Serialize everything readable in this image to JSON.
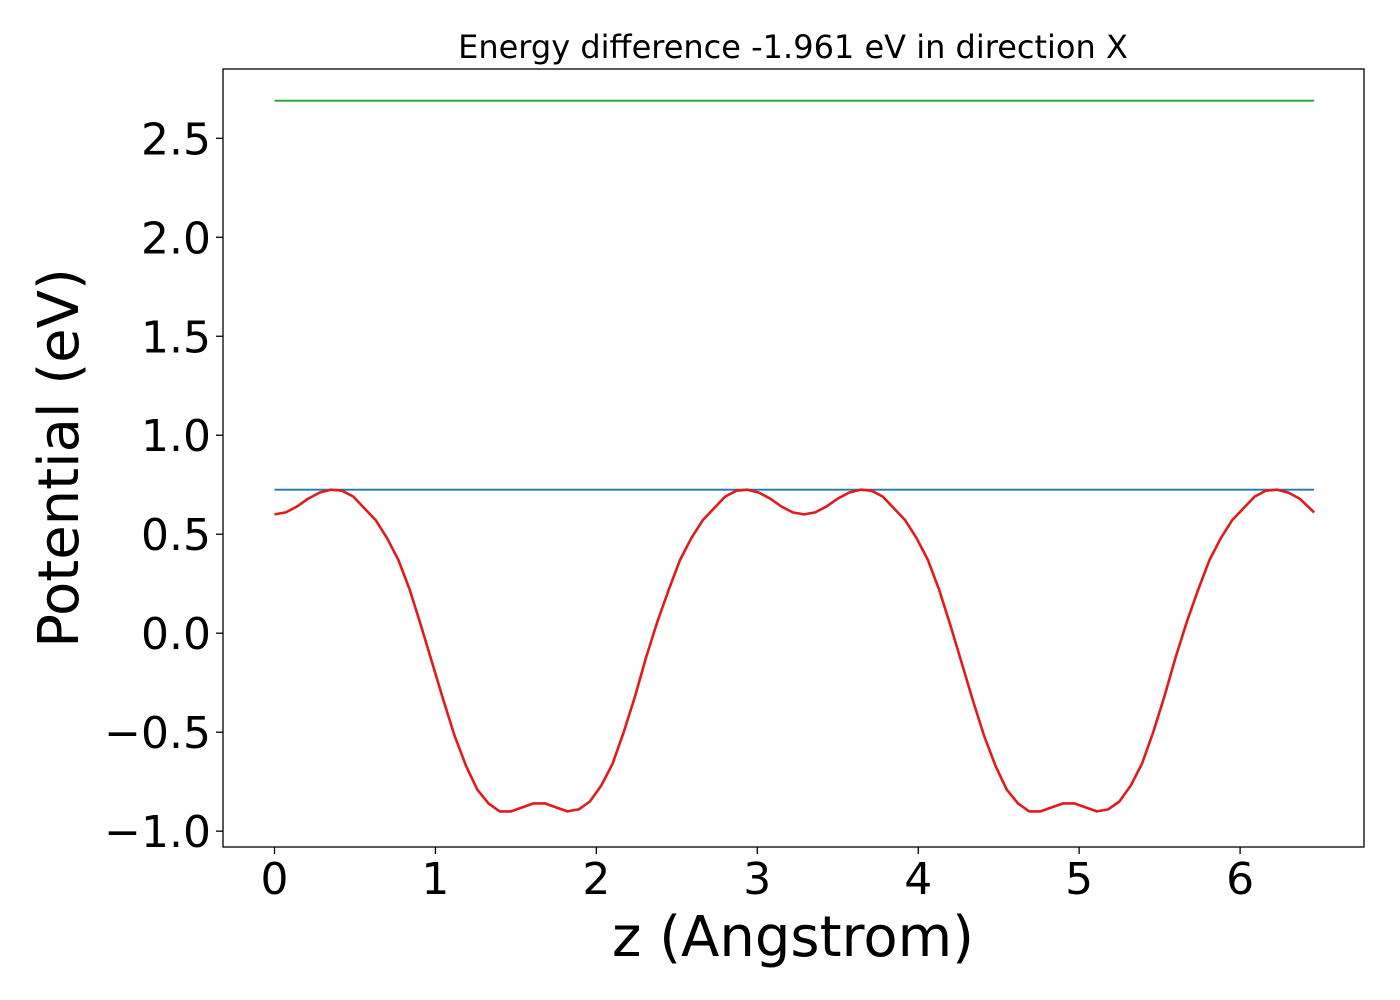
{
  "chart_data": {
    "type": "line",
    "title": "Energy difference -1.961 eV in direction X",
    "xlabel": "z (Angstrom)",
    "ylabel": "Potential (eV)",
    "xlim": [
      -0.32,
      6.77
    ],
    "ylim": [
      -1.08,
      2.85
    ],
    "xticks": [
      0,
      1,
      2,
      3,
      4,
      5,
      6
    ],
    "yticks": [
      -1.0,
      -0.5,
      0.0,
      0.5,
      1.0,
      1.5,
      2.0,
      2.5
    ],
    "xtick_labels": [
      "0",
      "1",
      "2",
      "3",
      "4",
      "5",
      "6"
    ],
    "ytick_labels": [
      "−1.0",
      "−0.5",
      "0.0",
      "0.5",
      "1.0",
      "1.5",
      "2.0",
      "2.5"
    ],
    "grid": false,
    "series": [
      {
        "color": "#2ca02c",
        "x": [
          0,
          6.46
        ],
        "y": [
          2.69,
          2.69
        ]
      },
      {
        "color": "#1f77b4",
        "x": [
          0,
          6.46
        ],
        "y": [
          0.725,
          0.725
        ]
      },
      {
        "color": "#e31a1c",
        "x": [
          0.0,
          0.07,
          0.14,
          0.21,
          0.28,
          0.35,
          0.42,
          0.49,
          0.56,
          0.63,
          0.7,
          0.77,
          0.84,
          0.91,
          0.98,
          1.05,
          1.12,
          1.19,
          1.26,
          1.33,
          1.4,
          1.47,
          1.54,
          1.61,
          1.68,
          1.75,
          1.82,
          1.89,
          1.96,
          2.03,
          2.1,
          2.17,
          2.24,
          2.31,
          2.38,
          2.45,
          2.52,
          2.59,
          2.66,
          2.73,
          2.8,
          2.87,
          2.94,
          3.01,
          3.08,
          3.15,
          3.22,
          3.29,
          3.36,
          3.43,
          3.5,
          3.57,
          3.64,
          3.71,
          3.78,
          3.85,
          3.92,
          3.99,
          4.06,
          4.13,
          4.2,
          4.27,
          4.34,
          4.41,
          4.48,
          4.55,
          4.62,
          4.69,
          4.76,
          4.83,
          4.9,
          4.97,
          5.04,
          5.11,
          5.18,
          5.25,
          5.32,
          5.39,
          5.46,
          5.53,
          5.6,
          5.67,
          5.74,
          5.81,
          5.88,
          5.95,
          6.02,
          6.09,
          6.16,
          6.23,
          6.3,
          6.37,
          6.46
        ],
        "y": [
          0.6,
          0.61,
          0.64,
          0.68,
          0.71,
          0.725,
          0.72,
          0.69,
          0.63,
          0.57,
          0.48,
          0.37,
          0.22,
          0.04,
          -0.15,
          -0.34,
          -0.52,
          -0.67,
          -0.79,
          -0.86,
          -0.9,
          -0.9,
          -0.88,
          -0.86,
          -0.86,
          -0.88,
          -0.9,
          -0.89,
          -0.85,
          -0.77,
          -0.66,
          -0.5,
          -0.32,
          -0.12,
          0.06,
          0.22,
          0.37,
          0.48,
          0.57,
          0.63,
          0.69,
          0.72,
          0.725,
          0.71,
          0.68,
          0.64,
          0.61,
          0.6,
          0.61,
          0.64,
          0.68,
          0.71,
          0.725,
          0.72,
          0.69,
          0.63,
          0.57,
          0.48,
          0.37,
          0.22,
          0.04,
          -0.15,
          -0.34,
          -0.52,
          -0.67,
          -0.79,
          -0.86,
          -0.9,
          -0.9,
          -0.88,
          -0.86,
          -0.86,
          -0.88,
          -0.9,
          -0.89,
          -0.85,
          -0.77,
          -0.66,
          -0.5,
          -0.32,
          -0.12,
          0.06,
          0.22,
          0.37,
          0.48,
          0.57,
          0.63,
          0.69,
          0.72,
          0.725,
          0.71,
          0.68,
          0.61
        ]
      }
    ]
  }
}
